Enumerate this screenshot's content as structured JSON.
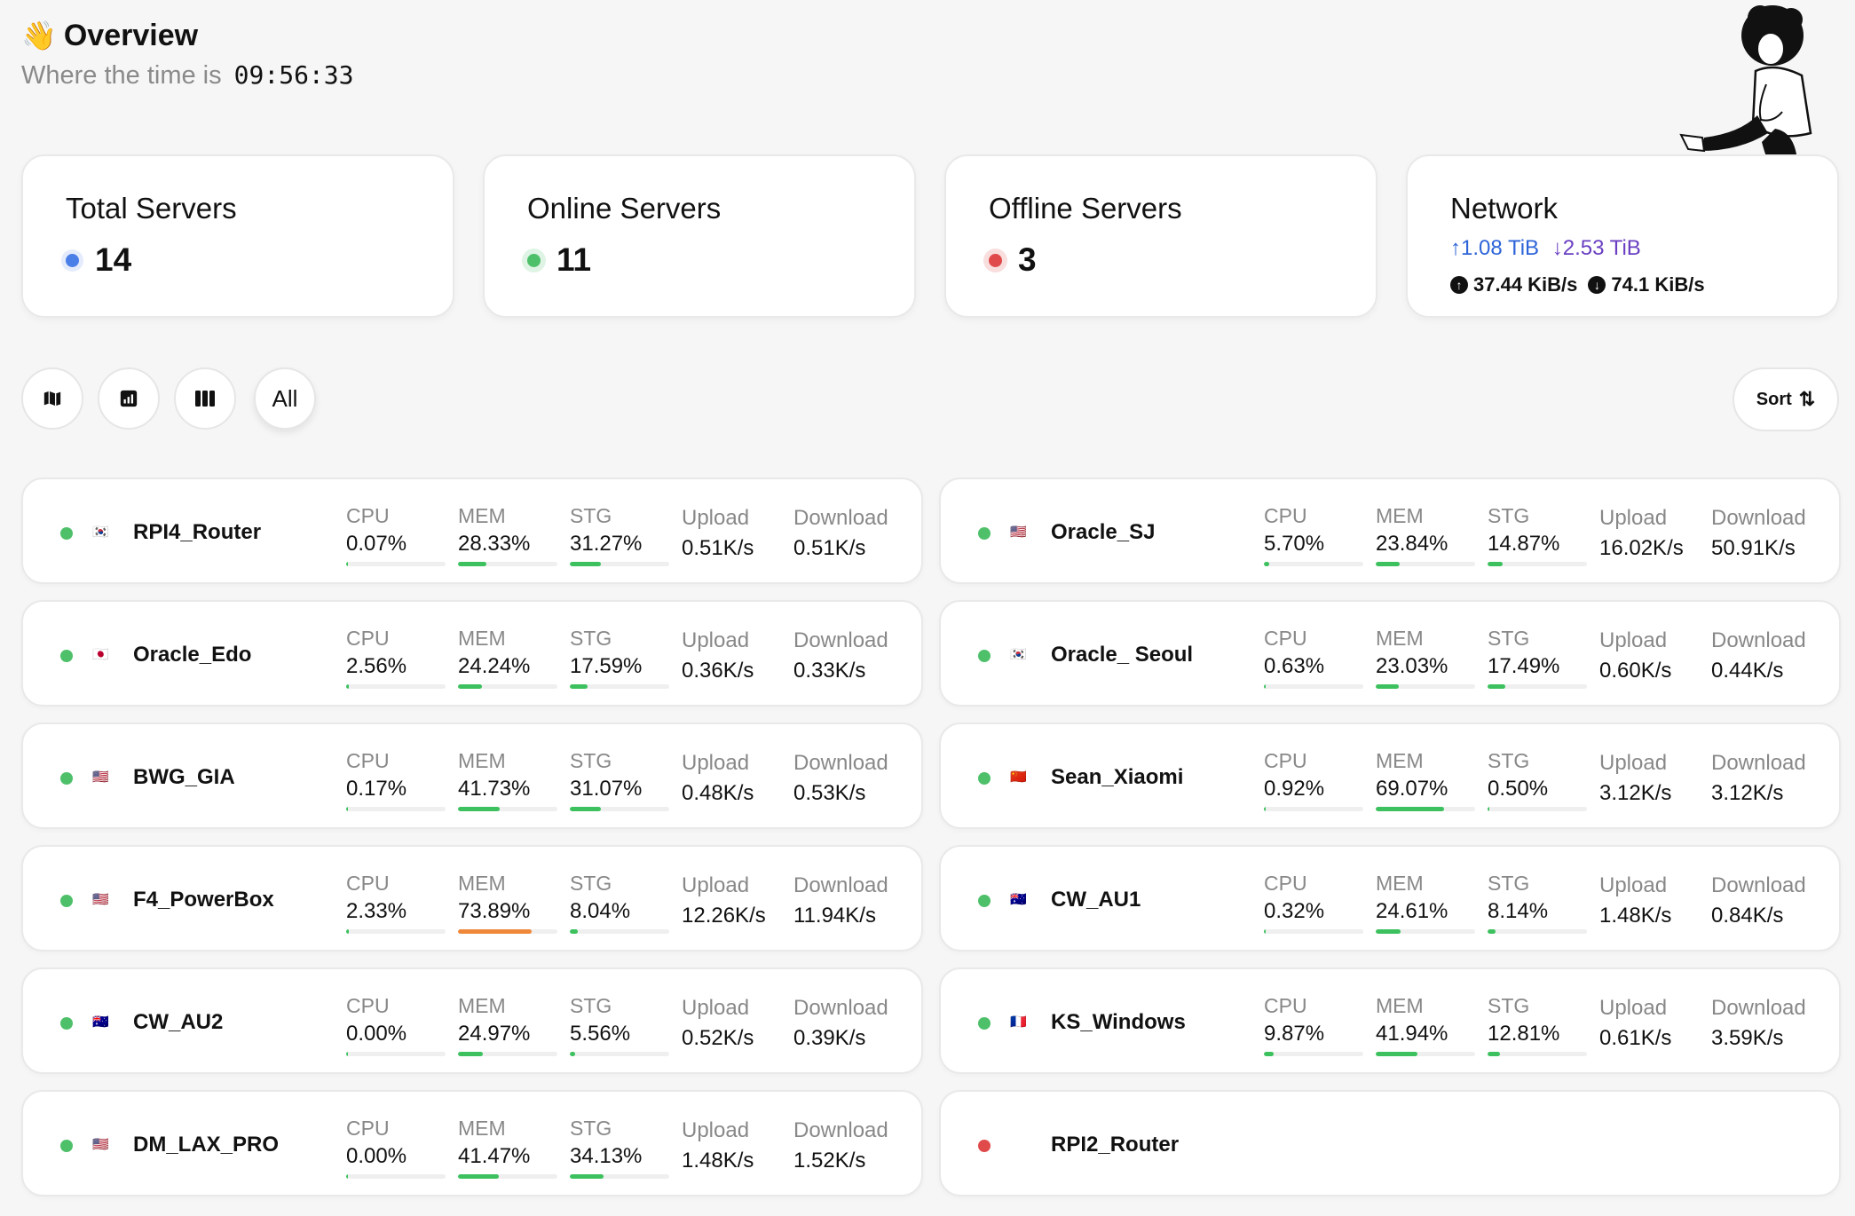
{
  "header": {
    "title": "Overview",
    "wave_icon": "👋",
    "time_label": "Where the time is",
    "time_value": "09:56:33"
  },
  "stats": {
    "total": {
      "title": "Total Servers",
      "value": "14",
      "color": "#4a7fe8"
    },
    "online": {
      "title": "Online Servers",
      "value": "11",
      "color": "#4fc06a"
    },
    "offline": {
      "title": "Offline Servers",
      "value": "3",
      "color": "#e04a4a"
    },
    "network": {
      "title": "Network",
      "up_total": "↑1.08 TiB",
      "down_total": "↓2.53 TiB",
      "up_speed": "37.44 KiB/s",
      "down_speed": "74.1 KiB/s"
    }
  },
  "toolbar": {
    "icons": [
      "map-icon",
      "chart-icon",
      "columns-icon"
    ],
    "all_label": "All",
    "sort_label": "Sort",
    "sort_icon": "⇅"
  },
  "labels": {
    "cpu": "CPU",
    "mem": "MEM",
    "stg": "STG",
    "upload": "Upload",
    "download": "Download"
  },
  "servers": [
    {
      "name": "RPI4_Router",
      "flag": "🇰🇷",
      "online": true,
      "cpu": "0.07%",
      "cpu_pct": 0.07,
      "mem": "28.33%",
      "mem_pct": 28.33,
      "stg": "31.27%",
      "stg_pct": 31.27,
      "upload": "0.51K/s",
      "download": "0.51K/s"
    },
    {
      "name": "Oracle_SJ",
      "flag": "🇺🇸",
      "online": true,
      "cpu": "5.70%",
      "cpu_pct": 5.7,
      "mem": "23.84%",
      "mem_pct": 23.84,
      "stg": "14.87%",
      "stg_pct": 14.87,
      "upload": "16.02K/s",
      "download": "50.91K/s"
    },
    {
      "name": "Oracle_Edo",
      "flag": "🇯🇵",
      "online": true,
      "cpu": "2.56%",
      "cpu_pct": 2.56,
      "mem": "24.24%",
      "mem_pct": 24.24,
      "stg": "17.59%",
      "stg_pct": 17.59,
      "upload": "0.36K/s",
      "download": "0.33K/s"
    },
    {
      "name": "Oracle_ Seoul",
      "flag": "🇰🇷",
      "online": true,
      "cpu": "0.63%",
      "cpu_pct": 0.63,
      "mem": "23.03%",
      "mem_pct": 23.03,
      "stg": "17.49%",
      "stg_pct": 17.49,
      "upload": "0.60K/s",
      "download": "0.44K/s"
    },
    {
      "name": "BWG_GIA",
      "flag": "🇺🇸",
      "online": true,
      "cpu": "0.17%",
      "cpu_pct": 0.17,
      "mem": "41.73%",
      "mem_pct": 41.73,
      "stg": "31.07%",
      "stg_pct": 31.07,
      "upload": "0.48K/s",
      "download": "0.53K/s"
    },
    {
      "name": "Sean_Xiaomi",
      "flag": "🇨🇳",
      "online": true,
      "cpu": "0.92%",
      "cpu_pct": 0.92,
      "mem": "69.07%",
      "mem_pct": 69.07,
      "stg": "0.50%",
      "stg_pct": 0.5,
      "upload": "3.12K/s",
      "download": "3.12K/s"
    },
    {
      "name": "F4_PowerBox",
      "flag": "🇺🇸",
      "online": true,
      "cpu": "2.33%",
      "cpu_pct": 2.33,
      "mem": "73.89%",
      "mem_pct": 73.89,
      "mem_warn": true,
      "stg": "8.04%",
      "stg_pct": 8.04,
      "upload": "12.26K/s",
      "download": "11.94K/s"
    },
    {
      "name": "CW_AU1",
      "flag": "🇦🇺",
      "online": true,
      "cpu": "0.32%",
      "cpu_pct": 0.32,
      "mem": "24.61%",
      "mem_pct": 24.61,
      "stg": "8.14%",
      "stg_pct": 8.14,
      "upload": "1.48K/s",
      "download": "0.84K/s"
    },
    {
      "name": "CW_AU2",
      "flag": "🇦🇺",
      "online": true,
      "cpu": "0.00%",
      "cpu_pct": 0.0,
      "mem": "24.97%",
      "mem_pct": 24.97,
      "stg": "5.56%",
      "stg_pct": 5.56,
      "upload": "0.52K/s",
      "download": "0.39K/s"
    },
    {
      "name": "KS_Windows",
      "flag": "🇫🇷",
      "online": true,
      "cpu": "9.87%",
      "cpu_pct": 9.87,
      "mem": "41.94%",
      "mem_pct": 41.94,
      "stg": "12.81%",
      "stg_pct": 12.81,
      "upload": "0.61K/s",
      "download": "3.59K/s"
    },
    {
      "name": "DM_LAX_PRO",
      "flag": "🇺🇸",
      "online": true,
      "cpu": "0.00%",
      "cpu_pct": 0.0,
      "mem": "41.47%",
      "mem_pct": 41.47,
      "stg": "34.13%",
      "stg_pct": 34.13,
      "upload": "1.48K/s",
      "download": "1.52K/s"
    },
    {
      "name": "RPI2_Router",
      "flag": "",
      "online": false
    }
  ]
}
